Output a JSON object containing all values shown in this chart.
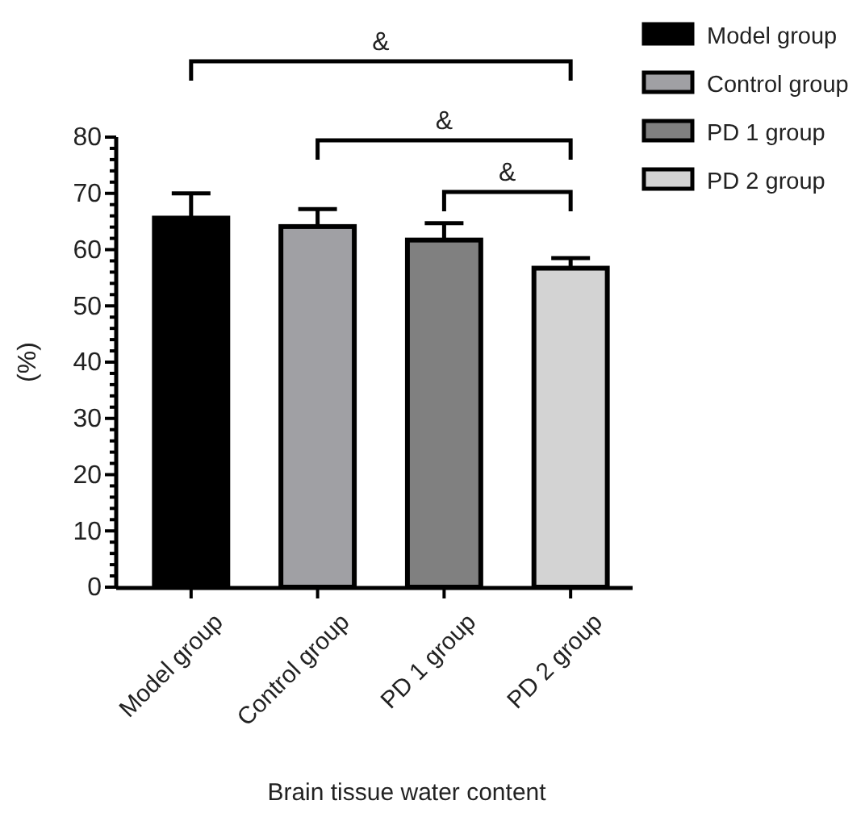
{
  "chart_data": {
    "type": "bar",
    "categories": [
      "Model group",
      "Control group",
      "PD 1 group",
      "PD 2 group"
    ],
    "stacked": true,
    "series": [
      {
        "name": "Model group",
        "color": "#000000",
        "values": [
          65.6,
          null,
          null,
          null
        ],
        "errors": [
          4.4,
          null,
          null,
          null
        ]
      },
      {
        "name": "Control group",
        "color": "#a0a0a4",
        "values": [
          null,
          64.1,
          null,
          null
        ],
        "errors": [
          null,
          3.1,
          null,
          null
        ]
      },
      {
        "name": "PD 1 group",
        "color": "#808080",
        "values": [
          null,
          null,
          61.7,
          null
        ],
        "errors": [
          null,
          null,
          3.0,
          null
        ]
      },
      {
        "name": "PD 2 group",
        "color": "#d3d3d3",
        "values": [
          null,
          null,
          null,
          56.7
        ],
        "errors": [
          null,
          null,
          null,
          1.8
        ]
      }
    ],
    "ylim": [
      0,
      80
    ],
    "yticks": [
      0,
      {
        "value": 2,
        "label": null
      },
      {
        "value": 4,
        "label": null
      },
      {
        "value": 6,
        "label": null
      },
      {
        "value": 8,
        "label": null
      },
      10,
      {
        "value": 12,
        "label": null
      },
      {
        "value": 14,
        "label": null
      },
      {
        "value": 16,
        "label": null
      },
      {
        "value": 18,
        "label": null
      },
      20,
      {
        "value": 22,
        "label": null
      },
      {
        "value": 24,
        "label": null
      },
      {
        "value": 26,
        "label": null
      },
      {
        "value": 28,
        "label": null
      },
      30,
      {
        "value": 32,
        "label": null
      },
      {
        "value": 34,
        "label": null
      },
      {
        "value": 36,
        "label": null
      },
      {
        "value": 38,
        "label": null
      },
      40,
      {
        "value": 42,
        "label": null
      },
      {
        "value": 44,
        "label": null
      },
      {
        "value": 46,
        "label": null
      },
      {
        "value": 48,
        "label": null
      },
      50,
      {
        "value": 52,
        "label": null
      },
      {
        "value": 54,
        "label": null
      },
      {
        "value": 56,
        "label": null
      },
      {
        "value": 58,
        "label": null
      },
      60,
      {
        "value": 62,
        "label": null
      },
      {
        "value": 64,
        "label": null
      },
      {
        "value": 66,
        "label": null
      },
      {
        "value": 68,
        "label": null
      },
      70,
      {
        "value": 72,
        "label": null
      },
      {
        "value": 74,
        "label": null
      },
      {
        "value": 76,
        "label": null
      },
      {
        "value": 78,
        "label": null
      },
      80
    ],
    "xlabel": "Brain tissue water content",
    "ylabel": "(%)",
    "annotations": [
      "&",
      "&",
      "&"
    ],
    "legend": "top right",
    "grid": false
  }
}
